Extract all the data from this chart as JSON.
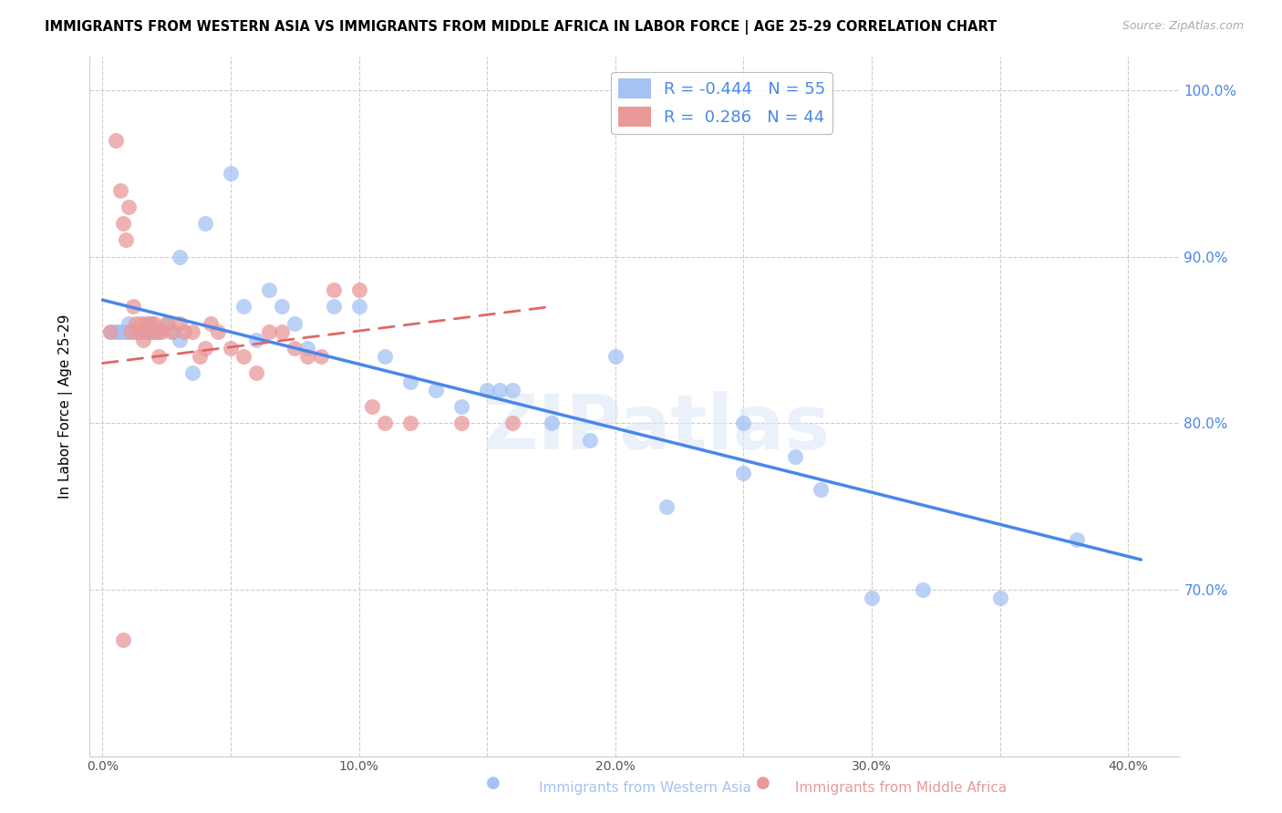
{
  "title": "IMMIGRANTS FROM WESTERN ASIA VS IMMIGRANTS FROM MIDDLE AFRICA IN LABOR FORCE | AGE 25-29 CORRELATION CHART",
  "source": "Source: ZipAtlas.com",
  "xlabel_ticks": [
    0.0,
    0.05,
    0.1,
    0.15,
    0.2,
    0.25,
    0.3,
    0.35,
    0.4
  ],
  "ylabel_ticks": [
    0.7,
    0.8,
    0.9,
    1.0
  ],
  "ylabel_labels": [
    "70.0%",
    "80.0%",
    "90.0%",
    "100.0%"
  ],
  "xlabel_labels": [
    "0.0%",
    "",
    "10.0%",
    "",
    "20.0%",
    "",
    "30.0%",
    "",
    "40.0%"
  ],
  "xlim": [
    -0.005,
    0.42
  ],
  "ylim": [
    0.6,
    1.02
  ],
  "blue_color": "#a4c2f4",
  "pink_color": "#ea9999",
  "blue_line_color": "#4a86e8",
  "pink_line_color": "#e06666",
  "legend_blue_R": "-0.444",
  "legend_blue_N": "55",
  "legend_pink_R": " 0.286",
  "legend_pink_N": "44",
  "ylabel": "In Labor Force | Age 25-29",
  "watermark": "ZIPatlas",
  "blue_scatter_x": [
    0.003,
    0.005,
    0.006,
    0.007,
    0.008,
    0.009,
    0.01,
    0.01,
    0.012,
    0.013,
    0.014,
    0.015,
    0.015,
    0.016,
    0.017,
    0.018,
    0.018,
    0.019,
    0.02,
    0.02,
    0.022,
    0.025,
    0.028,
    0.03,
    0.03,
    0.035,
    0.04,
    0.05,
    0.055,
    0.06,
    0.065,
    0.07,
    0.075,
    0.08,
    0.09,
    0.1,
    0.11,
    0.12,
    0.13,
    0.14,
    0.15,
    0.155,
    0.16,
    0.175,
    0.19,
    0.2,
    0.22,
    0.25,
    0.27,
    0.3,
    0.32,
    0.25,
    0.28,
    0.35,
    0.38
  ],
  "blue_scatter_y": [
    0.855,
    0.855,
    0.855,
    0.855,
    0.855,
    0.855,
    0.855,
    0.86,
    0.855,
    0.855,
    0.855,
    0.855,
    0.855,
    0.855,
    0.855,
    0.855,
    0.86,
    0.855,
    0.855,
    0.855,
    0.855,
    0.86,
    0.855,
    0.9,
    0.85,
    0.83,
    0.92,
    0.95,
    0.87,
    0.85,
    0.88,
    0.87,
    0.86,
    0.845,
    0.87,
    0.87,
    0.84,
    0.825,
    0.82,
    0.81,
    0.82,
    0.82,
    0.82,
    0.8,
    0.79,
    0.84,
    0.75,
    0.8,
    0.78,
    0.695,
    0.7,
    0.77,
    0.76,
    0.695,
    0.73
  ],
  "pink_scatter_x": [
    0.003,
    0.005,
    0.007,
    0.008,
    0.009,
    0.01,
    0.011,
    0.012,
    0.013,
    0.014,
    0.015,
    0.016,
    0.017,
    0.018,
    0.019,
    0.02,
    0.021,
    0.022,
    0.023,
    0.025,
    0.027,
    0.03,
    0.032,
    0.035,
    0.038,
    0.04,
    0.042,
    0.045,
    0.05,
    0.055,
    0.06,
    0.065,
    0.07,
    0.075,
    0.08,
    0.085,
    0.09,
    0.1,
    0.105,
    0.11,
    0.12,
    0.14,
    0.16,
    0.008
  ],
  "pink_scatter_y": [
    0.855,
    0.97,
    0.94,
    0.92,
    0.91,
    0.93,
    0.855,
    0.87,
    0.86,
    0.855,
    0.86,
    0.85,
    0.86,
    0.855,
    0.86,
    0.86,
    0.855,
    0.84,
    0.855,
    0.86,
    0.855,
    0.86,
    0.855,
    0.855,
    0.84,
    0.845,
    0.86,
    0.855,
    0.845,
    0.84,
    0.83,
    0.855,
    0.855,
    0.845,
    0.84,
    0.84,
    0.88,
    0.88,
    0.81,
    0.8,
    0.8,
    0.8,
    0.8,
    0.67
  ],
  "grid_color": "#cccccc",
  "background_color": "#ffffff",
  "fig_width": 14.06,
  "fig_height": 8.92,
  "blue_line_x0": 0.0,
  "blue_line_x1": 0.405,
  "blue_line_y0": 0.874,
  "blue_line_y1": 0.718,
  "pink_line_x0": 0.0,
  "pink_line_x1": 0.175,
  "pink_line_y0": 0.836,
  "pink_line_y1": 0.87
}
